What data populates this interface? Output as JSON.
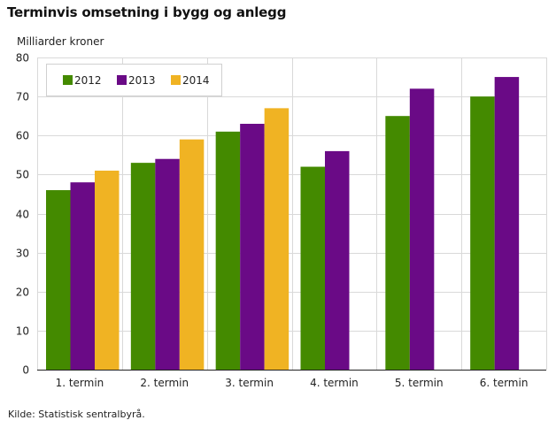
{
  "header": {
    "title": "Terminvis omsetning i bygg og anlegg",
    "unit_label": "Milliarder  kroner"
  },
  "footer": {
    "source": "Kilde: Statistisk sentralbyrå."
  },
  "chart_data": {
    "type": "bar",
    "title": "Terminvis omsetning i bygg og anlegg",
    "ylabel": "Milliarder  kroner",
    "xlabel": "",
    "ylim": [
      0,
      80
    ],
    "yticks": [
      0,
      10,
      20,
      30,
      40,
      50,
      60,
      70,
      80
    ],
    "grid": true,
    "legend_position": "top-left",
    "categories": [
      "1. termin",
      "2. termin",
      "3. termin",
      "4. termin",
      "5. termin",
      "6. termin"
    ],
    "series": [
      {
        "name": "2012",
        "color": "#448a00",
        "values": [
          46,
          53,
          61,
          52,
          65,
          70
        ]
      },
      {
        "name": "2013",
        "color": "#6a0a86",
        "values": [
          48,
          54,
          63,
          56,
          72,
          75
        ]
      },
      {
        "name": "2014",
        "color": "#f0b323",
        "values": [
          51,
          59,
          67,
          null,
          null,
          null
        ]
      }
    ]
  }
}
